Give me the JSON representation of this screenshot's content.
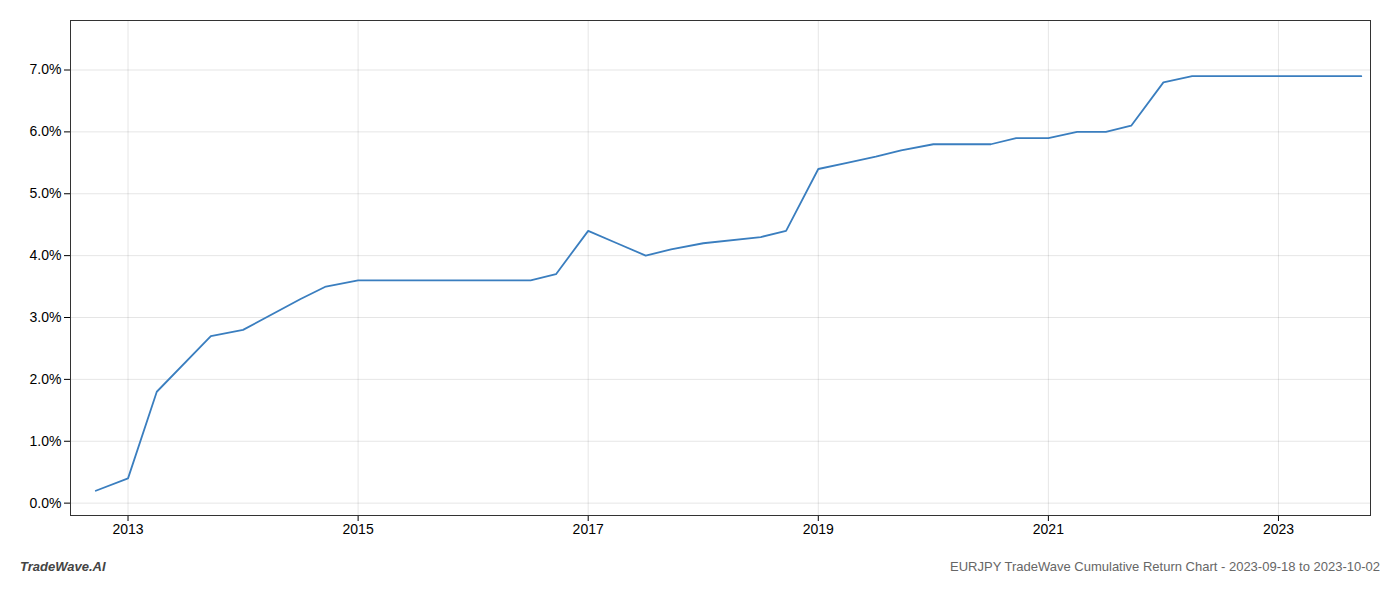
{
  "chart_data": {
    "type": "line",
    "annotations": [
      "TradeWave.AI",
      "EURJPY TradeWave Cumulative Return Chart - 2023-09-18 to 2023-10-02"
    ],
    "color": "#3a7ebf",
    "grid": true,
    "xlim": [
      2012.5,
      2023.8
    ],
    "ylim": [
      -0.002,
      0.078
    ],
    "xticks": [
      2013,
      2015,
      2017,
      2019,
      2021,
      2023
    ],
    "yticks": [
      {
        "value": 0.0,
        "label": "0.0%"
      },
      {
        "value": 0.01,
        "label": "1.0%"
      },
      {
        "value": 0.02,
        "label": "2.0%"
      },
      {
        "value": 0.03,
        "label": "3.0%"
      },
      {
        "value": 0.04,
        "label": "4.0%"
      },
      {
        "value": 0.05,
        "label": "5.0%"
      },
      {
        "value": 0.06,
        "label": "6.0%"
      },
      {
        "value": 0.07,
        "label": "7.0%"
      }
    ],
    "x": [
      2012.72,
      2013.0,
      2013.25,
      2013.72,
      2014.0,
      2014.5,
      2014.72,
      2015.0,
      2015.25,
      2015.5,
      2015.72,
      2016.0,
      2016.5,
      2016.72,
      2017.0,
      2017.25,
      2017.5,
      2017.72,
      2018.0,
      2018.5,
      2018.72,
      2019.0,
      2019.25,
      2019.5,
      2019.72,
      2020.0,
      2020.5,
      2020.72,
      2021.0,
      2021.25,
      2021.5,
      2021.72,
      2022.0,
      2022.25,
      2022.5,
      2022.72,
      2023.0,
      2023.5,
      2023.72
    ],
    "values": [
      0.002,
      0.004,
      0.018,
      0.027,
      0.028,
      0.033,
      0.035,
      0.036,
      0.036,
      0.036,
      0.036,
      0.036,
      0.036,
      0.037,
      0.044,
      0.042,
      0.04,
      0.041,
      0.042,
      0.043,
      0.044,
      0.054,
      0.055,
      0.056,
      0.057,
      0.058,
      0.058,
      0.059,
      0.059,
      0.06,
      0.06,
      0.061,
      0.068,
      0.069,
      0.069,
      0.069,
      0.069,
      0.069,
      0.069
    ]
  }
}
